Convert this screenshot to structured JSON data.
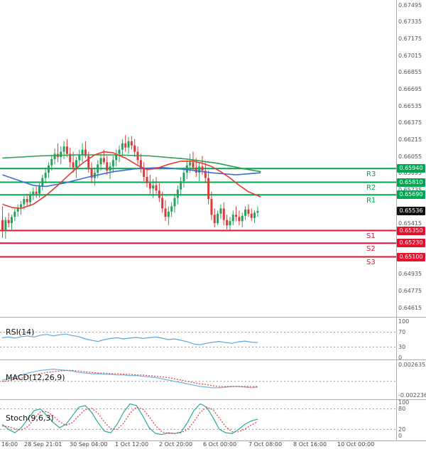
{
  "colors": {
    "bull": "#23a35c",
    "bear": "#d93b3b",
    "resistance": "#00a651",
    "support": "#e8112d",
    "current": "#111111",
    "ma_fast": "#e53935",
    "ma_mid": "#3b6fd4",
    "ma_slow": "#2e9e4f",
    "rsi": "#5aa7e0",
    "macd": "#6fb3e0",
    "macd_signal": "#e53935",
    "stoch_k": "#2aa79b",
    "stoch_d": "#e53935",
    "grid": "#999999",
    "border": "#adadad"
  },
  "chart_data": {
    "type": "candlestick",
    "description": "Intraday candlestick price chart with pivot resistance (R1-R3) and support (S1-S3) levels, three moving averages, and RSI, MACD and Stochastic subpanels",
    "x_labels": [
      "16:00",
      "28 Sep 21:01",
      "30 Sep 04:00",
      "1 Oct 12:00",
      "2 Oct 20:00",
      "6 Oct 00:00",
      "7 Oct 08:00",
      "8 Oct 16:00",
      "10 Oct 00:00"
    ],
    "y_tick_labels": [
      "0.67495",
      "0.67335",
      "0.67175",
      "0.67015",
      "0.66855",
      "0.66695",
      "0.66535",
      "0.66375",
      "0.66215",
      "0.66055",
      "0.65895",
      "0.65735",
      "0.65415",
      "0.64935",
      "0.64775",
      "0.64615"
    ],
    "y_range": [
      0.64615,
      0.67495
    ],
    "current_price": {
      "label": "0.65536",
      "value": 0.65536
    },
    "levels": {
      "r3": {
        "label": "R3",
        "price_label": "0.65940",
        "value": 0.6594
      },
      "r2": {
        "label": "R2",
        "price_label": "0.65810",
        "value": 0.6581
      },
      "r1": {
        "label": "R1",
        "price_label": "0.65690",
        "value": 0.6569
      },
      "s1": {
        "label": "S1",
        "price_label": "0.65350",
        "value": 0.6535
      },
      "s2": {
        "label": "S2",
        "price_label": "0.65230",
        "value": 0.6523
      },
      "s3": {
        "label": "S3",
        "price_label": "0.65100",
        "value": 0.651
      }
    },
    "candles": [
      [
        0.6545,
        0.6558,
        0.6528,
        0.6535
      ],
      [
        0.6535,
        0.6548,
        0.6527,
        0.6545
      ],
      [
        0.6545,
        0.6552,
        0.6538,
        0.6542
      ],
      [
        0.6542,
        0.655,
        0.6535,
        0.6548
      ],
      [
        0.6548,
        0.6556,
        0.6544,
        0.6553
      ],
      [
        0.6553,
        0.656,
        0.6548,
        0.6557
      ],
      [
        0.6557,
        0.6563,
        0.655,
        0.656
      ],
      [
        0.656,
        0.6568,
        0.6555,
        0.6565
      ],
      [
        0.6565,
        0.657,
        0.6558,
        0.6562
      ],
      [
        0.6562,
        0.6572,
        0.6558,
        0.6569
      ],
      [
        0.6569,
        0.6576,
        0.6564,
        0.6572
      ],
      [
        0.6572,
        0.6578,
        0.6566,
        0.657
      ],
      [
        0.657,
        0.658,
        0.6566,
        0.6577
      ],
      [
        0.6577,
        0.6588,
        0.6573,
        0.6585
      ],
      [
        0.6585,
        0.6595,
        0.658,
        0.659
      ],
      [
        0.659,
        0.66,
        0.6585,
        0.6597
      ],
      [
        0.6597,
        0.6607,
        0.6592,
        0.6603
      ],
      [
        0.6603,
        0.6613,
        0.6598,
        0.6608
      ],
      [
        0.6608,
        0.6618,
        0.66,
        0.6605
      ],
      [
        0.6605,
        0.6615,
        0.6598,
        0.661
      ],
      [
        0.661,
        0.662,
        0.6603,
        0.6615
      ],
      [
        0.6615,
        0.6622,
        0.6605,
        0.6608
      ],
      [
        0.6608,
        0.6614,
        0.6595,
        0.66
      ],
      [
        0.66,
        0.661,
        0.659,
        0.6595
      ],
      [
        0.6595,
        0.6605,
        0.6585,
        0.6602
      ],
      [
        0.6602,
        0.6612,
        0.6596,
        0.6607
      ],
      [
        0.6607,
        0.6618,
        0.66,
        0.6612
      ],
      [
        0.6612,
        0.662,
        0.6604,
        0.6606
      ],
      [
        0.6606,
        0.661,
        0.659,
        0.6594
      ],
      [
        0.6594,
        0.66,
        0.658,
        0.6585
      ],
      [
        0.6585,
        0.6595,
        0.6578,
        0.659
      ],
      [
        0.659,
        0.6602,
        0.6585,
        0.6598
      ],
      [
        0.6598,
        0.6608,
        0.6592,
        0.6604
      ],
      [
        0.6604,
        0.6612,
        0.6598,
        0.66
      ],
      [
        0.66,
        0.6606,
        0.6588,
        0.6592
      ],
      [
        0.6592,
        0.66,
        0.6584,
        0.6596
      ],
      [
        0.6596,
        0.6606,
        0.659,
        0.6602
      ],
      [
        0.6602,
        0.6612,
        0.6596,
        0.6608
      ],
      [
        0.6608,
        0.6616,
        0.66,
        0.6612
      ],
      [
        0.6612,
        0.6622,
        0.6606,
        0.6618
      ],
      [
        0.6618,
        0.6626,
        0.661,
        0.6614
      ],
      [
        0.6614,
        0.6624,
        0.6608,
        0.662
      ],
      [
        0.662,
        0.6625,
        0.6612,
        0.6616
      ],
      [
        0.6616,
        0.6622,
        0.6605,
        0.661
      ],
      [
        0.661,
        0.6615,
        0.6598,
        0.6602
      ],
      [
        0.6602,
        0.6608,
        0.659,
        0.6594
      ],
      [
        0.6594,
        0.66,
        0.6582,
        0.6586
      ],
      [
        0.6586,
        0.6594,
        0.6576,
        0.658
      ],
      [
        0.658,
        0.6588,
        0.657,
        0.6575
      ],
      [
        0.6575,
        0.6584,
        0.6566,
        0.6578
      ],
      [
        0.6578,
        0.6586,
        0.657,
        0.6573
      ],
      [
        0.6573,
        0.658,
        0.6562,
        0.6566
      ],
      [
        0.6566,
        0.6572,
        0.6552,
        0.6556
      ],
      [
        0.6556,
        0.6564,
        0.6544,
        0.6548
      ],
      [
        0.6548,
        0.6558,
        0.654,
        0.6553
      ],
      [
        0.6553,
        0.6562,
        0.6548,
        0.6558
      ],
      [
        0.6558,
        0.657,
        0.6552,
        0.6566
      ],
      [
        0.6566,
        0.6578,
        0.656,
        0.6574
      ],
      [
        0.6574,
        0.6586,
        0.6568,
        0.6582
      ],
      [
        0.6582,
        0.6595,
        0.6576,
        0.659
      ],
      [
        0.659,
        0.6602,
        0.6584,
        0.6597
      ],
      [
        0.6597,
        0.6608,
        0.659,
        0.66
      ],
      [
        0.66,
        0.661,
        0.6592,
        0.6595
      ],
      [
        0.6595,
        0.6604,
        0.6586,
        0.659
      ],
      [
        0.659,
        0.66,
        0.6582,
        0.6596
      ],
      [
        0.6596,
        0.6606,
        0.6588,
        0.6592
      ],
      [
        0.6592,
        0.66,
        0.658,
        0.6585
      ],
      [
        0.6585,
        0.6592,
        0.656,
        0.6565
      ],
      [
        0.6565,
        0.6572,
        0.6545,
        0.655
      ],
      [
        0.655,
        0.6556,
        0.6538,
        0.6542
      ],
      [
        0.6542,
        0.6554,
        0.654,
        0.6551
      ],
      [
        0.6551,
        0.656,
        0.6546,
        0.6556
      ],
      [
        0.6556,
        0.6562,
        0.654,
        0.6545
      ],
      [
        0.6545,
        0.655,
        0.6536,
        0.654
      ],
      [
        0.654,
        0.6548,
        0.6535,
        0.6544
      ],
      [
        0.6544,
        0.6554,
        0.654,
        0.655
      ],
      [
        0.655,
        0.6558,
        0.6544,
        0.6548
      ],
      [
        0.6548,
        0.6554,
        0.654,
        0.6544
      ],
      [
        0.6544,
        0.6552,
        0.6538,
        0.6549
      ],
      [
        0.6549,
        0.6558,
        0.6545,
        0.6555
      ],
      [
        0.6555,
        0.656,
        0.6548,
        0.6551
      ],
      [
        0.6551,
        0.6556,
        0.6544,
        0.6547
      ],
      [
        0.6547,
        0.6554,
        0.6542,
        0.6552
      ],
      [
        0.6552,
        0.6558,
        0.6548,
        0.65536
      ]
    ],
    "moving_averages": [
      {
        "name": "slow-ma",
        "color_key": "ma_slow",
        "points": [
          [
            0,
            0.6604
          ],
          [
            12,
            0.6606
          ],
          [
            24,
            0.6607
          ],
          [
            36,
            0.6607
          ],
          [
            48,
            0.6606
          ],
          [
            60,
            0.6603
          ],
          [
            70,
            0.6599
          ],
          [
            78,
            0.6594
          ],
          [
            84,
            0.6591
          ]
        ]
      },
      {
        "name": "mid-ma",
        "color_key": "ma_mid",
        "points": [
          [
            0,
            0.6588
          ],
          [
            5,
            0.6583
          ],
          [
            10,
            0.6578
          ],
          [
            14,
            0.6577
          ],
          [
            20,
            0.658
          ],
          [
            28,
            0.6586
          ],
          [
            36,
            0.6591
          ],
          [
            44,
            0.6594
          ],
          [
            52,
            0.6595
          ],
          [
            60,
            0.6593
          ],
          [
            68,
            0.659
          ],
          [
            76,
            0.6588
          ],
          [
            84,
            0.659
          ]
        ]
      },
      {
        "name": "fast-ma",
        "color_key": "ma_fast",
        "points": [
          [
            0,
            0.656
          ],
          [
            3,
            0.6557
          ],
          [
            6,
            0.6556
          ],
          [
            10,
            0.656
          ],
          [
            14,
            0.6568
          ],
          [
            18,
            0.6578
          ],
          [
            22,
            0.6589
          ],
          [
            26,
            0.6599
          ],
          [
            30,
            0.6607
          ],
          [
            33,
            0.661
          ],
          [
            36,
            0.6609
          ],
          [
            40,
            0.6604
          ],
          [
            44,
            0.6597
          ],
          [
            47,
            0.6593
          ],
          [
            50,
            0.6594
          ],
          [
            54,
            0.6598
          ],
          [
            58,
            0.6601
          ],
          [
            62,
            0.6601
          ],
          [
            65,
            0.6599
          ],
          [
            68,
            0.6596
          ],
          [
            71,
            0.6591
          ],
          [
            74,
            0.6585
          ],
          [
            77,
            0.6578
          ],
          [
            80,
            0.6572
          ],
          [
            84,
            0.6567
          ]
        ]
      }
    ],
    "indicators": [
      {
        "name": "RSI(14)",
        "range": [
          0,
          100
        ],
        "axis_labels": [
          "100",
          "70",
          "30",
          "0"
        ],
        "grid_values": [
          70,
          30
        ],
        "series": [
          {
            "name": "rsi",
            "color_key": "rsi",
            "dashed": false,
            "values": [
              55,
              57,
              54,
              58,
              60,
              57,
              62,
              64,
              60,
              63,
              65,
              61,
              58,
              52,
              48,
              45,
              50,
              53,
              55,
              52,
              54,
              56,
              53,
              55,
              57,
              54,
              50,
              52,
              48,
              44,
              38,
              36,
              40,
              43,
              45,
              42,
              40,
              44,
              46,
              43,
              42
            ]
          }
        ]
      },
      {
        "name": "MACD(12,26,9)",
        "range": [
          -0.002236,
          0.002635
        ],
        "axis_labels": [
          "0.002635",
          "-0.002236"
        ],
        "grid_values": [
          0
        ],
        "series": [
          {
            "name": "macd",
            "color_key": "macd",
            "dashed": false,
            "values": [
              0.0002,
              0.0004,
              0.0007,
              0.001,
              0.0013,
              0.0015,
              0.0017,
              0.0018,
              0.0019,
              0.0018,
              0.0017,
              0.0016,
              0.0014,
              0.0013,
              0.0012,
              0.0012,
              0.0011,
              0.0011,
              0.001,
              0.001,
              0.0009,
              0.0009,
              0.0008,
              0.0007,
              0.0006,
              0.0004,
              0.0002,
              0,
              -0.0002,
              -0.0004,
              -0.0006,
              -0.0008,
              -0.0009,
              -0.001,
              -0.001,
              -0.0009,
              -0.0008,
              -0.0008,
              -0.0009,
              -0.001,
              -0.0009
            ]
          },
          {
            "name": "signal",
            "color_key": "macd_signal",
            "dashed": true,
            "values": [
              0,
              0.0001,
              0.0003,
              0.0005,
              0.0008,
              0.001,
              0.0012,
              0.0014,
              0.0015,
              0.0016,
              0.0017,
              0.0017,
              0.0016,
              0.0015,
              0.0014,
              0.0013,
              0.0013,
              0.0012,
              0.0012,
              0.0011,
              0.0011,
              0.001,
              0.001,
              0.0009,
              0.0008,
              0.0007,
              0.0006,
              0.0004,
              0.0002,
              0,
              -0.0002,
              -0.0004,
              -0.0005,
              -0.0007,
              -0.0008,
              -0.0008,
              -0.0008,
              -0.0008,
              -0.0008,
              -0.0008,
              -0.0008
            ]
          }
        ]
      },
      {
        "name": "Stoch(9,6,3)",
        "range": [
          0,
          100
        ],
        "axis_labels": [
          "100",
          "80",
          "20",
          "0"
        ],
        "grid_values": [
          80,
          20
        ],
        "series": [
          {
            "name": "stoch-k",
            "color_key": "stoch_k",
            "dashed": false,
            "values": [
              35,
              20,
              10,
              25,
              50,
              75,
              80,
              60,
              40,
              25,
              35,
              60,
              85,
              90,
              70,
              40,
              15,
              10,
              35,
              70,
              95,
              90,
              60,
              25,
              8,
              5,
              10,
              8,
              12,
              40,
              75,
              95,
              85,
              55,
              20,
              10,
              8,
              20,
              35,
              45,
              50
            ]
          },
          {
            "name": "stoch-d",
            "color_key": "stoch_d",
            "dashed": true,
            "values": [
              30,
              28,
              22,
              18,
              28,
              50,
              72,
              72,
              60,
              42,
              32,
              40,
              60,
              78,
              82,
              67,
              42,
              22,
              20,
              38,
              67,
              85,
              80,
              58,
              31,
              13,
              8,
              8,
              10,
              20,
              42,
              70,
              85,
              78,
              53,
              28,
              13,
              13,
              21,
              33,
              43
            ]
          }
        ]
      }
    ]
  }
}
